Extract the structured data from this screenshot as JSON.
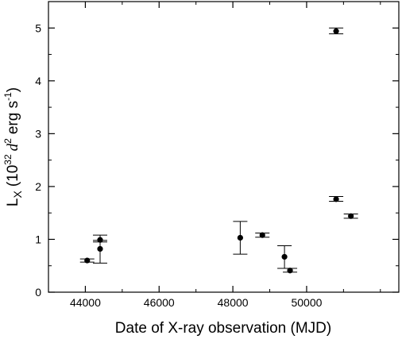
{
  "chart_data": {
    "type": "scatter",
    "title": "",
    "xlabel": "Date of X-ray observation (MJD)",
    "ylabel_parts": {
      "main": "L",
      "sub": "X",
      "open": "(10",
      "exp1": "32",
      "d": "d",
      "exp2": "2",
      "unit": "erg s",
      "exp3": "-1",
      "close": ")"
    },
    "xlim": [
      43000,
      52500
    ],
    "ylim": [
      0,
      5.5
    ],
    "x_ticks": [
      44000,
      46000,
      48000,
      50000
    ],
    "x_tick_labels": [
      "44000",
      "46000",
      "48000",
      "50000"
    ],
    "y_ticks": [
      0,
      1,
      2,
      3,
      4,
      5
    ],
    "y_tick_labels": [
      "0",
      "1",
      "2",
      "3",
      "4",
      "5"
    ],
    "x_minor_step": 1000,
    "y_minor_step": 0.5,
    "grid": false,
    "marker_color": "#000000",
    "points": [
      {
        "x": 44050,
        "y": 0.6,
        "ylo": 0.57,
        "yhi": 0.63
      },
      {
        "x": 44400,
        "y": 0.99,
        "ylo": 0.95,
        "yhi": 1.08
      },
      {
        "x": 44400,
        "y": 0.82,
        "ylo": 0.55,
        "yhi": 0.98
      },
      {
        "x": 48200,
        "y": 1.03,
        "ylo": 0.72,
        "yhi": 1.34
      },
      {
        "x": 48800,
        "y": 1.08,
        "ylo": 1.04,
        "yhi": 1.12
      },
      {
        "x": 49400,
        "y": 0.67,
        "ylo": 0.45,
        "yhi": 0.88
      },
      {
        "x": 49550,
        "y": 0.41,
        "ylo": 0.38,
        "yhi": 0.45
      },
      {
        "x": 50800,
        "y": 4.94,
        "ylo": 4.89,
        "yhi": 5.0
      },
      {
        "x": 50800,
        "y": 1.76,
        "ylo": 1.72,
        "yhi": 1.81
      },
      {
        "x": 51200,
        "y": 1.44,
        "ylo": 1.4,
        "yhi": 1.48
      }
    ]
  }
}
